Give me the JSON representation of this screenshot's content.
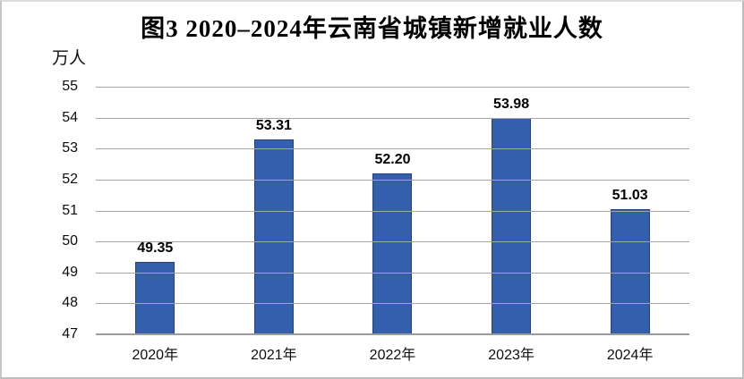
{
  "chart_data": {
    "type": "bar",
    "title": "图3  2020–2024年云南省城镇新增就业人数",
    "unit_label": "万人",
    "categories": [
      "2020年",
      "2021年",
      "2022年",
      "2023年",
      "2024年"
    ],
    "values": [
      49.35,
      53.31,
      52.2,
      53.98,
      51.03
    ],
    "data_labels": [
      "49.35",
      "53.31",
      "52.20",
      "53.98",
      "51.03"
    ],
    "ylim": [
      47,
      55
    ],
    "yticks": [
      47,
      48,
      49,
      50,
      51,
      52,
      53,
      54,
      55
    ],
    "grid": true,
    "legend_position": "none",
    "bar_color": "#335fac",
    "bar_border_color": "#26417d",
    "gridline_color": "#a6a6a6",
    "axis_line_color": "#9b9b9b",
    "frame_border_color": "#bdbdbd"
  }
}
